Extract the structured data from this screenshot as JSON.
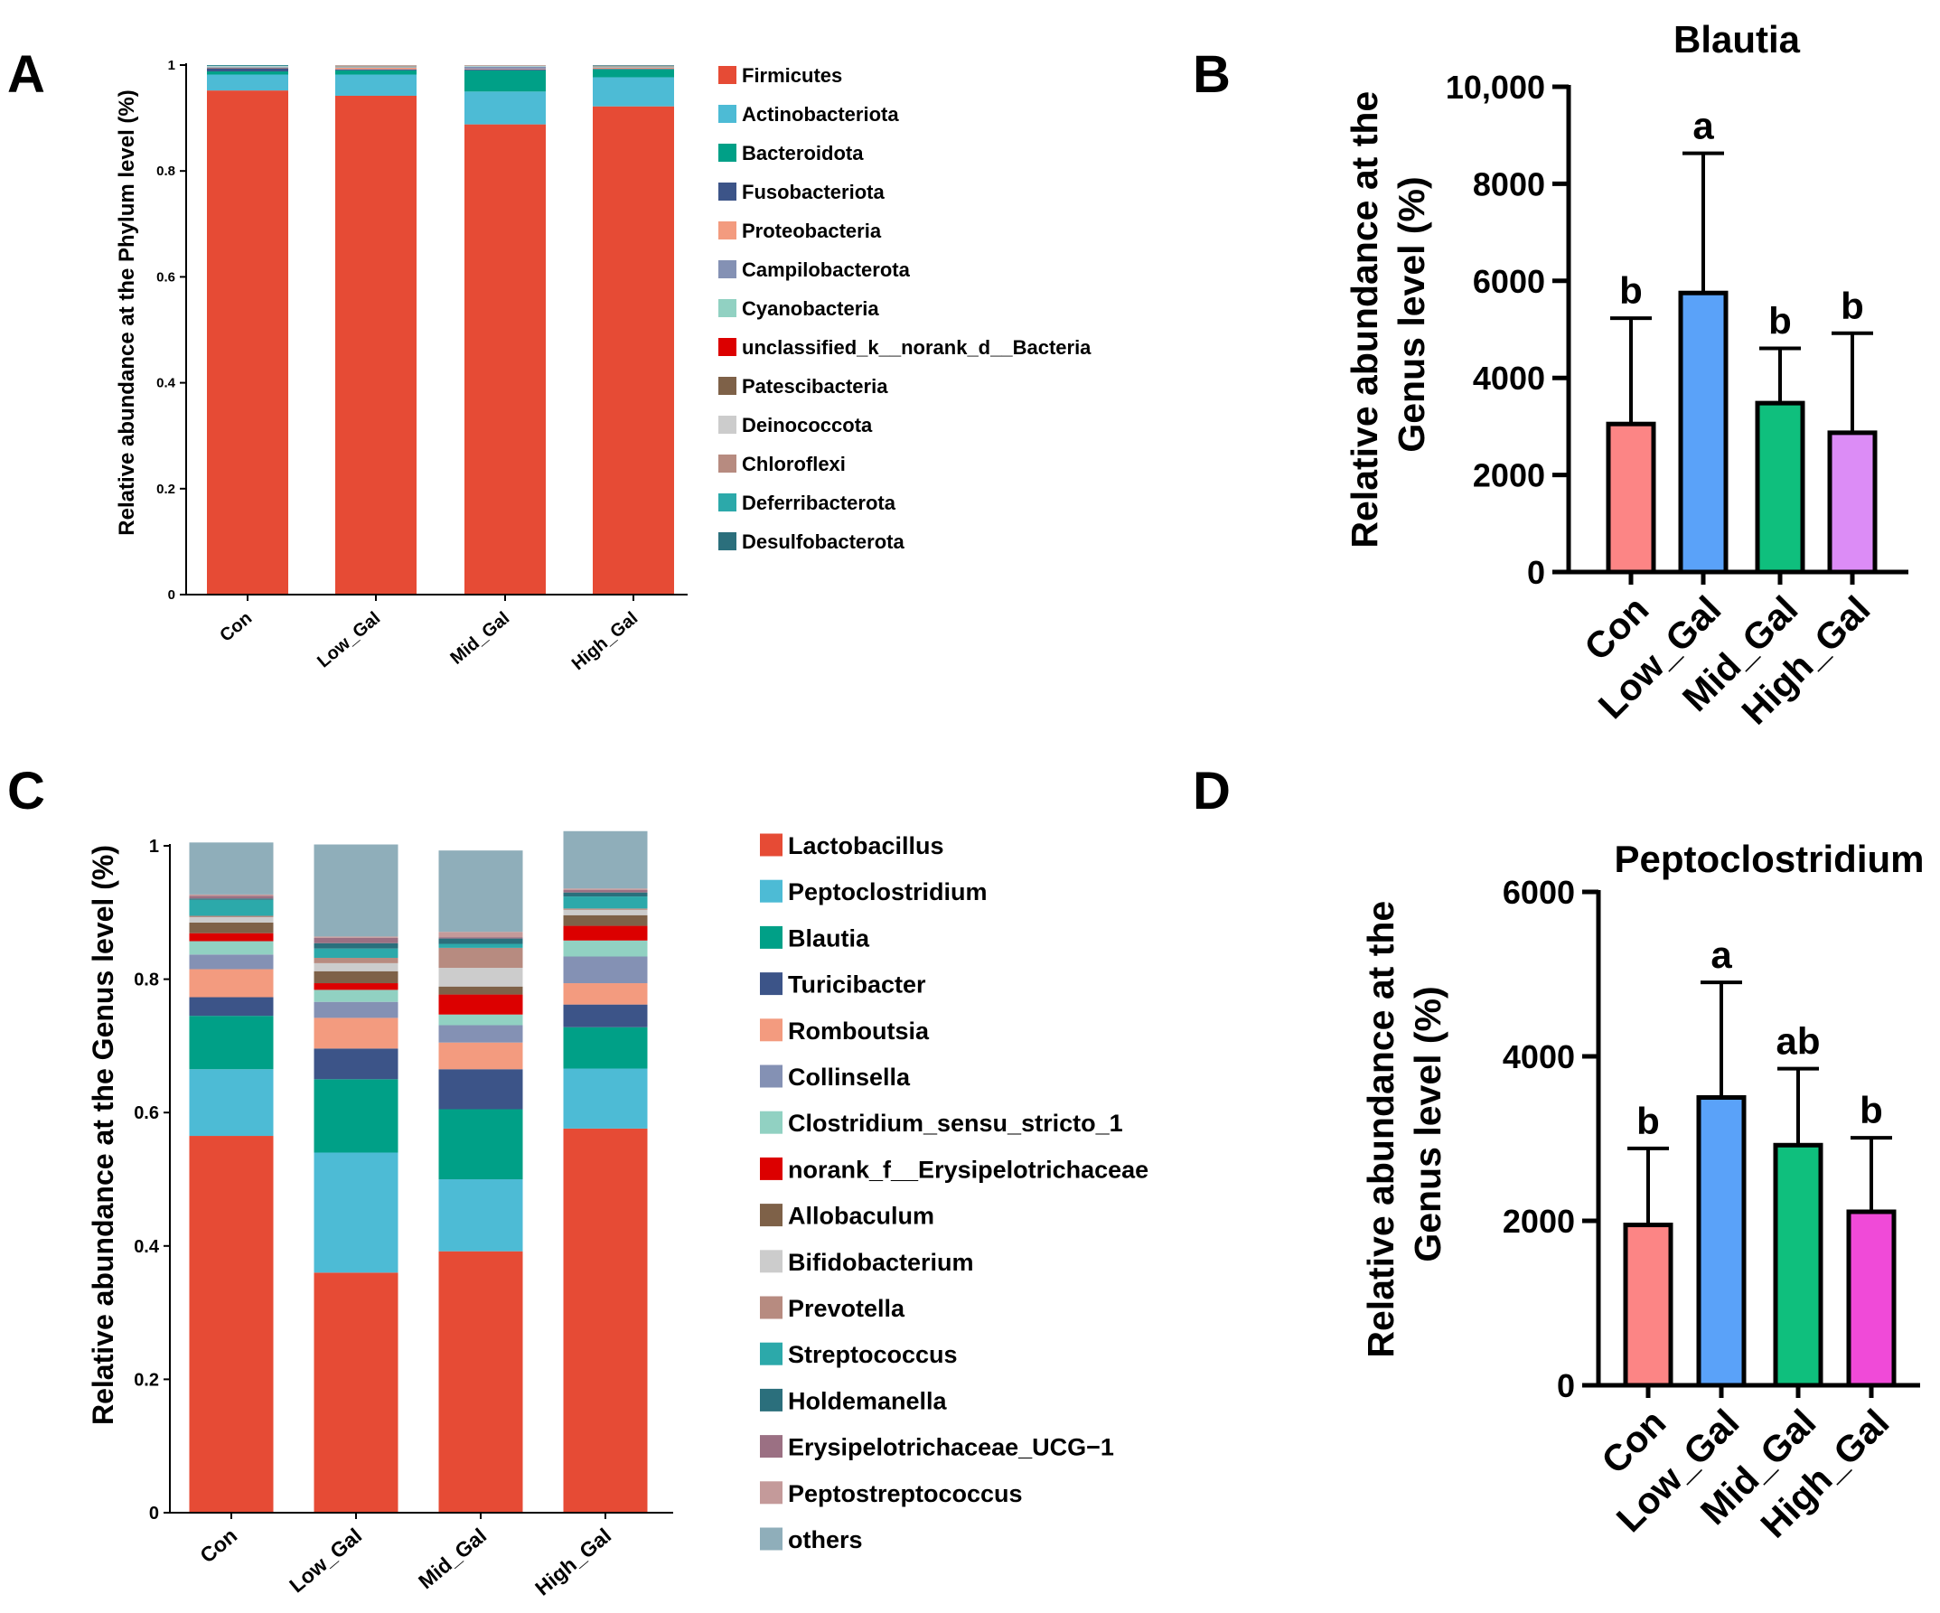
{
  "panels": {
    "A": "A",
    "B": "B",
    "C": "C",
    "D": "D"
  },
  "chart_data": [
    {
      "id": "A",
      "type": "bar",
      "stacked": true,
      "title": "",
      "ylabel": "Relative abundance at the Phylum level (%)",
      "ylim": [
        0,
        1
      ],
      "yticks": [
        "0",
        "0.2",
        "0.4",
        "0.6",
        "0.8",
        "1"
      ],
      "categories": [
        "Con",
        "Low_Gal",
        "Mid_Gal",
        "High_Gal"
      ],
      "series": [
        {
          "name": "Firmicutes",
          "color": "#e64b35",
          "values": [
            0.952,
            0.942,
            0.888,
            0.922
          ]
        },
        {
          "name": "Actinobacteriota",
          "color": "#4dbbd5",
          "values": [
            0.03,
            0.04,
            0.062,
            0.055
          ]
        },
        {
          "name": "Bacteroidota",
          "color": "#00a087",
          "values": [
            0.006,
            0.008,
            0.04,
            0.015
          ]
        },
        {
          "name": "Fusobacteriota",
          "color": "#3c5488",
          "values": [
            0.006,
            0.002,
            0.002,
            0.001
          ]
        },
        {
          "name": "Proteobacteria",
          "color": "#f39b7f",
          "values": [
            0.001,
            0.003,
            0.001,
            0.002
          ]
        },
        {
          "name": "Campilobacterota",
          "color": "#8491b4",
          "values": [
            0.001,
            0.001,
            0.004,
            0.001
          ]
        },
        {
          "name": "Cyanobacteria",
          "color": "#91d1c2",
          "values": [
            0.001,
            0.001,
            0.001,
            0.001
          ]
        },
        {
          "name": "unclassified_k__norank_d__Bacteria",
          "color": "#dc0000",
          "values": [
            0.0,
            0.0,
            0.0,
            0.0
          ]
        },
        {
          "name": "Patescibacteria",
          "color": "#7e6148",
          "values": [
            0.0,
            0.001,
            0.0,
            0.001
          ]
        },
        {
          "name": "Deinococcota",
          "color": "#cccccc",
          "values": [
            0.001,
            0.001,
            0.001,
            0.001
          ]
        },
        {
          "name": "Chloroflexi",
          "color": "#b78b80",
          "values": [
            0.0,
            0.001,
            0.001,
            0.0
          ]
        },
        {
          "name": "Deferribacterota",
          "color": "#2ca9aa",
          "values": [
            0.001,
            0.0,
            0.0,
            0.0
          ]
        },
        {
          "name": "Desulfobacterota",
          "color": "#2b6f7c",
          "values": [
            0.001,
            0.0,
            0.0,
            0.001
          ]
        }
      ]
    },
    {
      "id": "B",
      "type": "bar",
      "title": "Blautia",
      "ylabel": [
        "Relative abundance at the",
        "Genus level (%)"
      ],
      "ylim": [
        0,
        10000
      ],
      "yticks": [
        "0",
        "2000",
        "4000",
        "6000",
        "8000",
        "10,000"
      ],
      "categories": [
        "Con",
        "Low_Gal",
        "Mid_Gal",
        "High_Gal"
      ],
      "colors": [
        "#fc8585",
        "#5aa2f9",
        "#0fbf7d",
        "#dc8cf6"
      ],
      "values": [
        3050,
        5750,
        3480,
        2870
      ],
      "error": [
        2180,
        2880,
        1130,
        2050
      ],
      "significance": [
        "b",
        "a",
        "b",
        "b"
      ]
    },
    {
      "id": "C",
      "type": "bar",
      "stacked": true,
      "title": "",
      "ylabel": "Relative abundance at the Genus level (%)",
      "ylim": [
        0,
        1
      ],
      "yticks": [
        "0",
        "0.2",
        "0.4",
        "0.6",
        "0.8",
        "1"
      ],
      "categories": [
        "Con",
        "Low_Gal",
        "Mid_Gal",
        "High_Gal"
      ],
      "series": [
        {
          "name": "Lactobacillus",
          "color": "#e64b35",
          "values": [
            0.565,
            0.36,
            0.392,
            0.576
          ]
        },
        {
          "name": "Peptoclostridium",
          "color": "#4dbbd5",
          "values": [
            0.1,
            0.18,
            0.108,
            0.09
          ]
        },
        {
          "name": "Blautia",
          "color": "#00a087",
          "values": [
            0.08,
            0.11,
            0.105,
            0.062
          ]
        },
        {
          "name": "Turicibacter",
          "color": "#3c5488",
          "values": [
            0.028,
            0.046,
            0.06,
            0.034
          ]
        },
        {
          "name": "Romboutsia",
          "color": "#f39b7f",
          "values": [
            0.042,
            0.046,
            0.04,
            0.032
          ]
        },
        {
          "name": "Collinsella",
          "color": "#8491b4",
          "values": [
            0.022,
            0.024,
            0.026,
            0.04
          ]
        },
        {
          "name": "Clostridium_sensu_stricto_1",
          "color": "#91d1c2",
          "values": [
            0.02,
            0.018,
            0.016,
            0.024
          ]
        },
        {
          "name": "norank_f__Erysipelotrichaceae",
          "color": "#dc0000",
          "values": [
            0.012,
            0.01,
            0.03,
            0.022
          ]
        },
        {
          "name": "Allobaculum",
          "color": "#7e6148",
          "values": [
            0.016,
            0.018,
            0.012,
            0.016
          ]
        },
        {
          "name": "Bifidobacterium",
          "color": "#cccccc",
          "values": [
            0.008,
            0.012,
            0.028,
            0.008
          ]
        },
        {
          "name": "Prevotella",
          "color": "#b78b80",
          "values": [
            0.002,
            0.008,
            0.03,
            0.002
          ]
        },
        {
          "name": "Streptococcus",
          "color": "#2ca9aa",
          "values": [
            0.024,
            0.014,
            0.006,
            0.018
          ]
        },
        {
          "name": "Holdemanella",
          "color": "#2b6f7c",
          "values": [
            0.002,
            0.008,
            0.008,
            0.006
          ]
        },
        {
          "name": "Erysipelotrichaceae_UCG−1",
          "color": "#9b7083",
          "values": [
            0.004,
            0.008,
            0.002,
            0.004
          ]
        },
        {
          "name": "Peptostreptococcus",
          "color": "#c49a9a",
          "values": [
            0.002,
            0.002,
            0.008,
            0.002
          ]
        },
        {
          "name": "others",
          "color": "#8faeba",
          "values": [
            0.078,
            0.138,
            0.122,
            0.086
          ]
        }
      ]
    },
    {
      "id": "D",
      "type": "bar",
      "title": "Peptoclostridium",
      "ylabel": [
        "Relative abundance at the",
        "Genus level (%)"
      ],
      "ylim": [
        0,
        6000
      ],
      "yticks": [
        "0",
        "2000",
        "4000",
        "6000"
      ],
      "categories": [
        "Con",
        "Low_Gal",
        "Mid_Gal",
        "High_Gal"
      ],
      "colors": [
        "#fc8585",
        "#5aa2f9",
        "#0fbf7d",
        "#f04ad8"
      ],
      "values": [
        1950,
        3500,
        2920,
        2110
      ],
      "error": [
        930,
        1400,
        930,
        900
      ],
      "significance": [
        "b",
        "a",
        "ab",
        "b"
      ]
    }
  ]
}
